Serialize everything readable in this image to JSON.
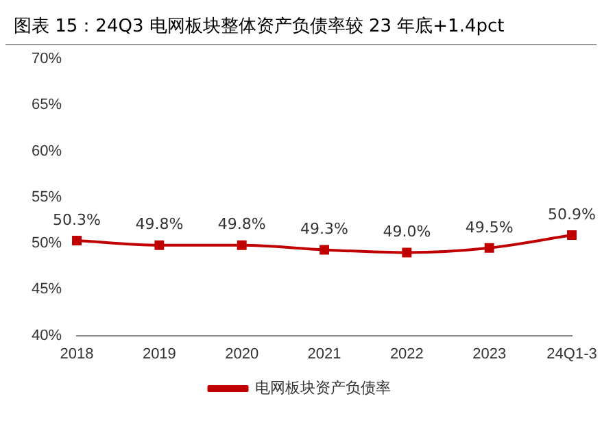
{
  "chart_data": {
    "type": "line",
    "title": "图表 15：24Q3 电网板块整体资产负债率较 23 年底+1.4pct",
    "categories": [
      "2018",
      "2019",
      "2020",
      "2021",
      "2022",
      "2023",
      "24Q1-3"
    ],
    "series": [
      {
        "name": "电网板块资产负债率",
        "color": "#c00000",
        "values": [
          50.3,
          49.8,
          49.8,
          49.3,
          49.0,
          49.5,
          50.9
        ],
        "value_labels": [
          "50.3%",
          "49.8%",
          "49.8%",
          "49.3%",
          "49.0%",
          "49.5%",
          "50.9%"
        ]
      }
    ],
    "ylim": [
      40,
      70
    ],
    "yticks": [
      {
        "value": 40,
        "label": "40%"
      },
      {
        "value": 45,
        "label": "45%"
      },
      {
        "value": 50,
        "label": "50%"
      },
      {
        "value": 55,
        "label": "55%"
      },
      {
        "value": 60,
        "label": "60%"
      },
      {
        "value": 65,
        "label": "65%"
      },
      {
        "value": 70,
        "label": "70%"
      }
    ],
    "grid": false,
    "legend": "bottom",
    "marker": "square",
    "line_style": "solid"
  }
}
